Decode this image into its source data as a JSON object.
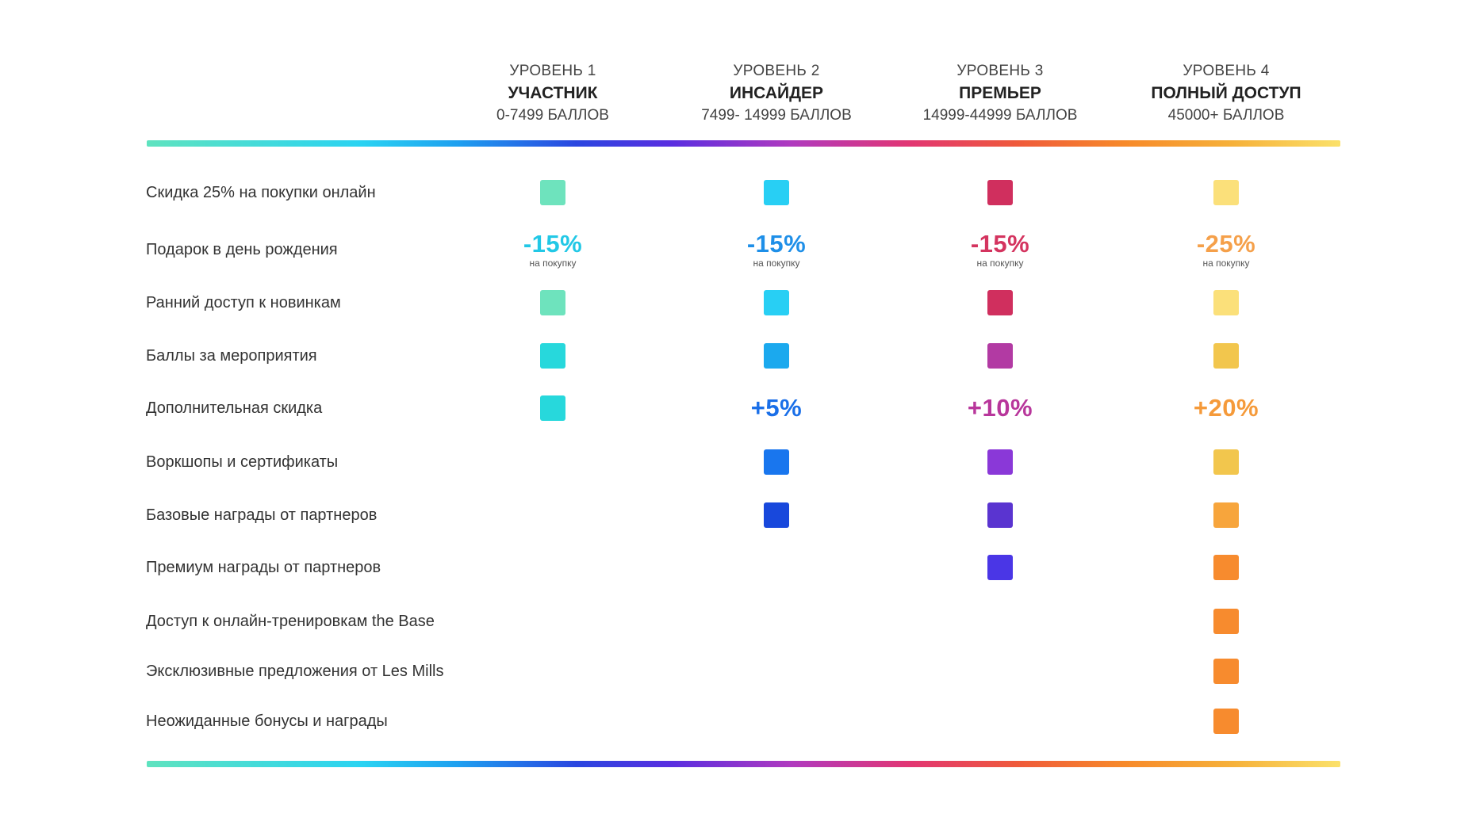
{
  "tiers": [
    {
      "level": "УРОВЕНЬ 1",
      "name": "УЧАСТНИК",
      "points": "0-7499 БАЛЛОВ"
    },
    {
      "level": "УРОВЕНЬ 2",
      "name": "ИНСАЙДЕР",
      "points": "7499- 14999 БАЛЛОВ"
    },
    {
      "level": "УРОВЕНЬ 3",
      "name": "ПРЕМЬЕР",
      "points": "14999-44999 БАЛЛОВ"
    },
    {
      "level": "УРОВЕНЬ 4",
      "name": "ПОЛНЫЙ ДОСТУП",
      "points": "45000+ БАЛЛОВ"
    }
  ],
  "rows": [
    {
      "label": "Скидка 25% на покупки онлайн",
      "cells": [
        {
          "type": "square",
          "color": "#6ee3bd"
        },
        {
          "type": "square",
          "color": "#28cff4"
        },
        {
          "type": "square",
          "color": "#d02f5e"
        },
        {
          "type": "square",
          "color": "#fbe07a"
        }
      ]
    },
    {
      "label": "Подарок в день рождения",
      "cells": [
        {
          "type": "text",
          "text": "-15%",
          "sub": "на покупку",
          "color": "#22c8e6"
        },
        {
          "type": "text",
          "text": "-15%",
          "sub": "на покупку",
          "color": "#1e8fe8"
        },
        {
          "type": "text",
          "text": "-15%",
          "sub": "на покупку",
          "color": "#d4345f"
        },
        {
          "type": "text",
          "text": "-25%",
          "sub": "на покупку",
          "color": "#f5a04a"
        }
      ]
    },
    {
      "label": "Ранний доступ к новинкам",
      "cells": [
        {
          "type": "square",
          "color": "#6ee3bd"
        },
        {
          "type": "square",
          "color": "#28cff4"
        },
        {
          "type": "square",
          "color": "#d02f5e"
        },
        {
          "type": "square",
          "color": "#fbe07a"
        }
      ]
    },
    {
      "label": "Баллы за мероприятия",
      "cells": [
        {
          "type": "square",
          "color": "#27d8dc"
        },
        {
          "type": "square",
          "color": "#1ba9ee"
        },
        {
          "type": "square",
          "color": "#b23aa3"
        },
        {
          "type": "square",
          "color": "#f2c64d"
        }
      ]
    },
    {
      "label": "Дополнительная скидка",
      "cells": [
        {
          "type": "square",
          "color": "#27d8dc"
        },
        {
          "type": "text",
          "text": "+5%",
          "sub": "",
          "color": "#1a6fe8"
        },
        {
          "type": "text",
          "text": "+10%",
          "sub": "",
          "color": "#b8369b"
        },
        {
          "type": "text",
          "text": "+20%",
          "sub": "",
          "color": "#f59a3a"
        }
      ]
    },
    {
      "label": "Воркшопы и сертификаты",
      "cells": [
        {
          "type": "none"
        },
        {
          "type": "square",
          "color": "#1976ee"
        },
        {
          "type": "square",
          "color": "#8a38d8"
        },
        {
          "type": "square",
          "color": "#f2c64d"
        }
      ]
    },
    {
      "label": "Базовые награды от партнеров",
      "cells": [
        {
          "type": "none"
        },
        {
          "type": "square",
          "color": "#1848dc"
        },
        {
          "type": "square",
          "color": "#5a34d0"
        },
        {
          "type": "square",
          "color": "#f7a53c"
        }
      ]
    },
    {
      "label": "Премиум награды от партнеров",
      "cells": [
        {
          "type": "none"
        },
        {
          "type": "none"
        },
        {
          "type": "square",
          "color": "#4a36e6"
        },
        {
          "type": "square",
          "color": "#f78b2e"
        }
      ]
    },
    {
      "label": "Доступ к онлайн-тренировкам the Base",
      "cells": [
        {
          "type": "none"
        },
        {
          "type": "none"
        },
        {
          "type": "none"
        },
        {
          "type": "square",
          "color": "#f78b2e"
        }
      ]
    },
    {
      "label": "Эксклюзивные предложения от Les Mills",
      "cells": [
        {
          "type": "none"
        },
        {
          "type": "none"
        },
        {
          "type": "none"
        },
        {
          "type": "square",
          "color": "#f78b2e"
        }
      ]
    },
    {
      "label": "Неожиданные бонусы и награды",
      "cells": [
        {
          "type": "none"
        },
        {
          "type": "none"
        },
        {
          "type": "none"
        },
        {
          "type": "square",
          "color": "#f78b2e"
        }
      ]
    }
  ]
}
